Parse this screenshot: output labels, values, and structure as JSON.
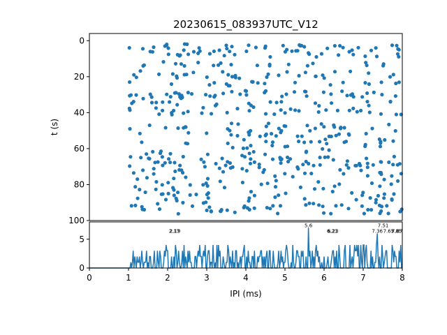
{
  "chart_data": [
    {
      "type": "scatter",
      "title": "20230615_083937UTC_V12",
      "ylabel": "t (s)",
      "xlim": [
        0,
        8
      ],
      "ylim": [
        100,
        -4
      ],
      "y_inverted": true,
      "y_ticks": [
        "0",
        "20",
        "40",
        "60",
        "80",
        "100"
      ],
      "color": "#1f77b4",
      "x_range_of_points": [
        1.0,
        8.0
      ],
      "y_rows": [
        3,
        5,
        8,
        13,
        18,
        20,
        24,
        29,
        31,
        35,
        38,
        40,
        47,
        49,
        52,
        56,
        59,
        62,
        65,
        68,
        70,
        73,
        76,
        79,
        82,
        85,
        88,
        91,
        93,
        95
      ]
    },
    {
      "type": "line",
      "xlabel": "IPI (ms)",
      "xlim": [
        0,
        8
      ],
      "ylim": [
        0,
        8
      ],
      "x_ticks": [
        "0",
        "1",
        "2",
        "3",
        "4",
        "5",
        "6",
        "7",
        "8"
      ],
      "y_ticks": [
        "0",
        "5"
      ],
      "color": "#1f77b4",
      "baseline_until": 1.0,
      "annotations": [
        {
          "x": 2.17,
          "y": 6,
          "label": "2.17"
        },
        {
          "x": 2.19,
          "y": 6,
          "label": "2.19"
        },
        {
          "x": 5.6,
          "y": 7,
          "label": "5.6"
        },
        {
          "x": 6.21,
          "y": 6,
          "label": "6.21"
        },
        {
          "x": 6.23,
          "y": 6,
          "label": "6.23"
        },
        {
          "x": 7.36,
          "y": 6,
          "label": "7.36"
        },
        {
          "x": 7.51,
          "y": 7,
          "label": "7.51"
        },
        {
          "x": 7.65,
          "y": 6,
          "label": "7.65"
        },
        {
          "x": 7.85,
          "y": 6,
          "label": "7.85"
        },
        {
          "x": 7.87,
          "y": 6,
          "label": "7.87"
        }
      ]
    }
  ]
}
